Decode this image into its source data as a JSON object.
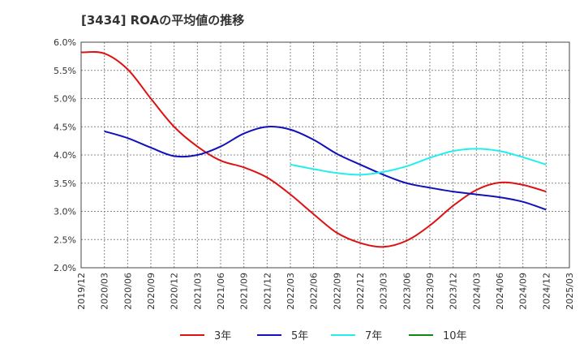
{
  "chart_data": {
    "type": "line",
    "title": "[3434]  ROAの平均値の推移",
    "xlabel": "",
    "ylabel": "",
    "ylim": [
      2.0,
      6.0
    ],
    "y_ticks": [
      "6.0%",
      "5.5%",
      "5.0%",
      "4.5%",
      "4.0%",
      "3.5%",
      "3.0%",
      "2.5%",
      "2.0%"
    ],
    "x_ticks": [
      "2019/12",
      "2020/03",
      "2020/06",
      "2020/09",
      "2020/12",
      "2021/03",
      "2021/06",
      "2021/09",
      "2021/12",
      "2022/03",
      "2022/06",
      "2022/09",
      "2022/12",
      "2023/03",
      "2023/06",
      "2023/09",
      "2023/12",
      "2024/03",
      "2024/06",
      "2024/09",
      "2024/12",
      "2025/03"
    ],
    "grid": true,
    "legend_position": "bottom",
    "series": [
      {
        "name": "3年",
        "color": "#dd1111",
        "start_index": 0,
        "values": [
          5.82,
          5.8,
          5.52,
          5.0,
          4.5,
          4.15,
          3.9,
          3.78,
          3.6,
          3.3,
          2.95,
          2.62,
          2.44,
          2.37,
          2.48,
          2.75,
          3.1,
          3.38,
          3.51,
          3.47,
          3.35
        ]
      },
      {
        "name": "5年",
        "color": "#1111bb",
        "start_index": 1,
        "values": [
          4.42,
          4.3,
          4.13,
          3.98,
          4.0,
          4.15,
          4.38,
          4.5,
          4.45,
          4.27,
          4.02,
          3.83,
          3.65,
          3.5,
          3.42,
          3.35,
          3.3,
          3.25,
          3.17,
          3.03
        ]
      },
      {
        "name": "7年",
        "color": "#22eeee",
        "start_index": 9,
        "values": [
          3.83,
          3.75,
          3.68,
          3.65,
          3.7,
          3.8,
          3.95,
          4.07,
          4.11,
          4.07,
          3.96,
          3.83
        ]
      },
      {
        "name": "10年",
        "color": "#118811",
        "start_index": 0,
        "values": []
      }
    ]
  }
}
